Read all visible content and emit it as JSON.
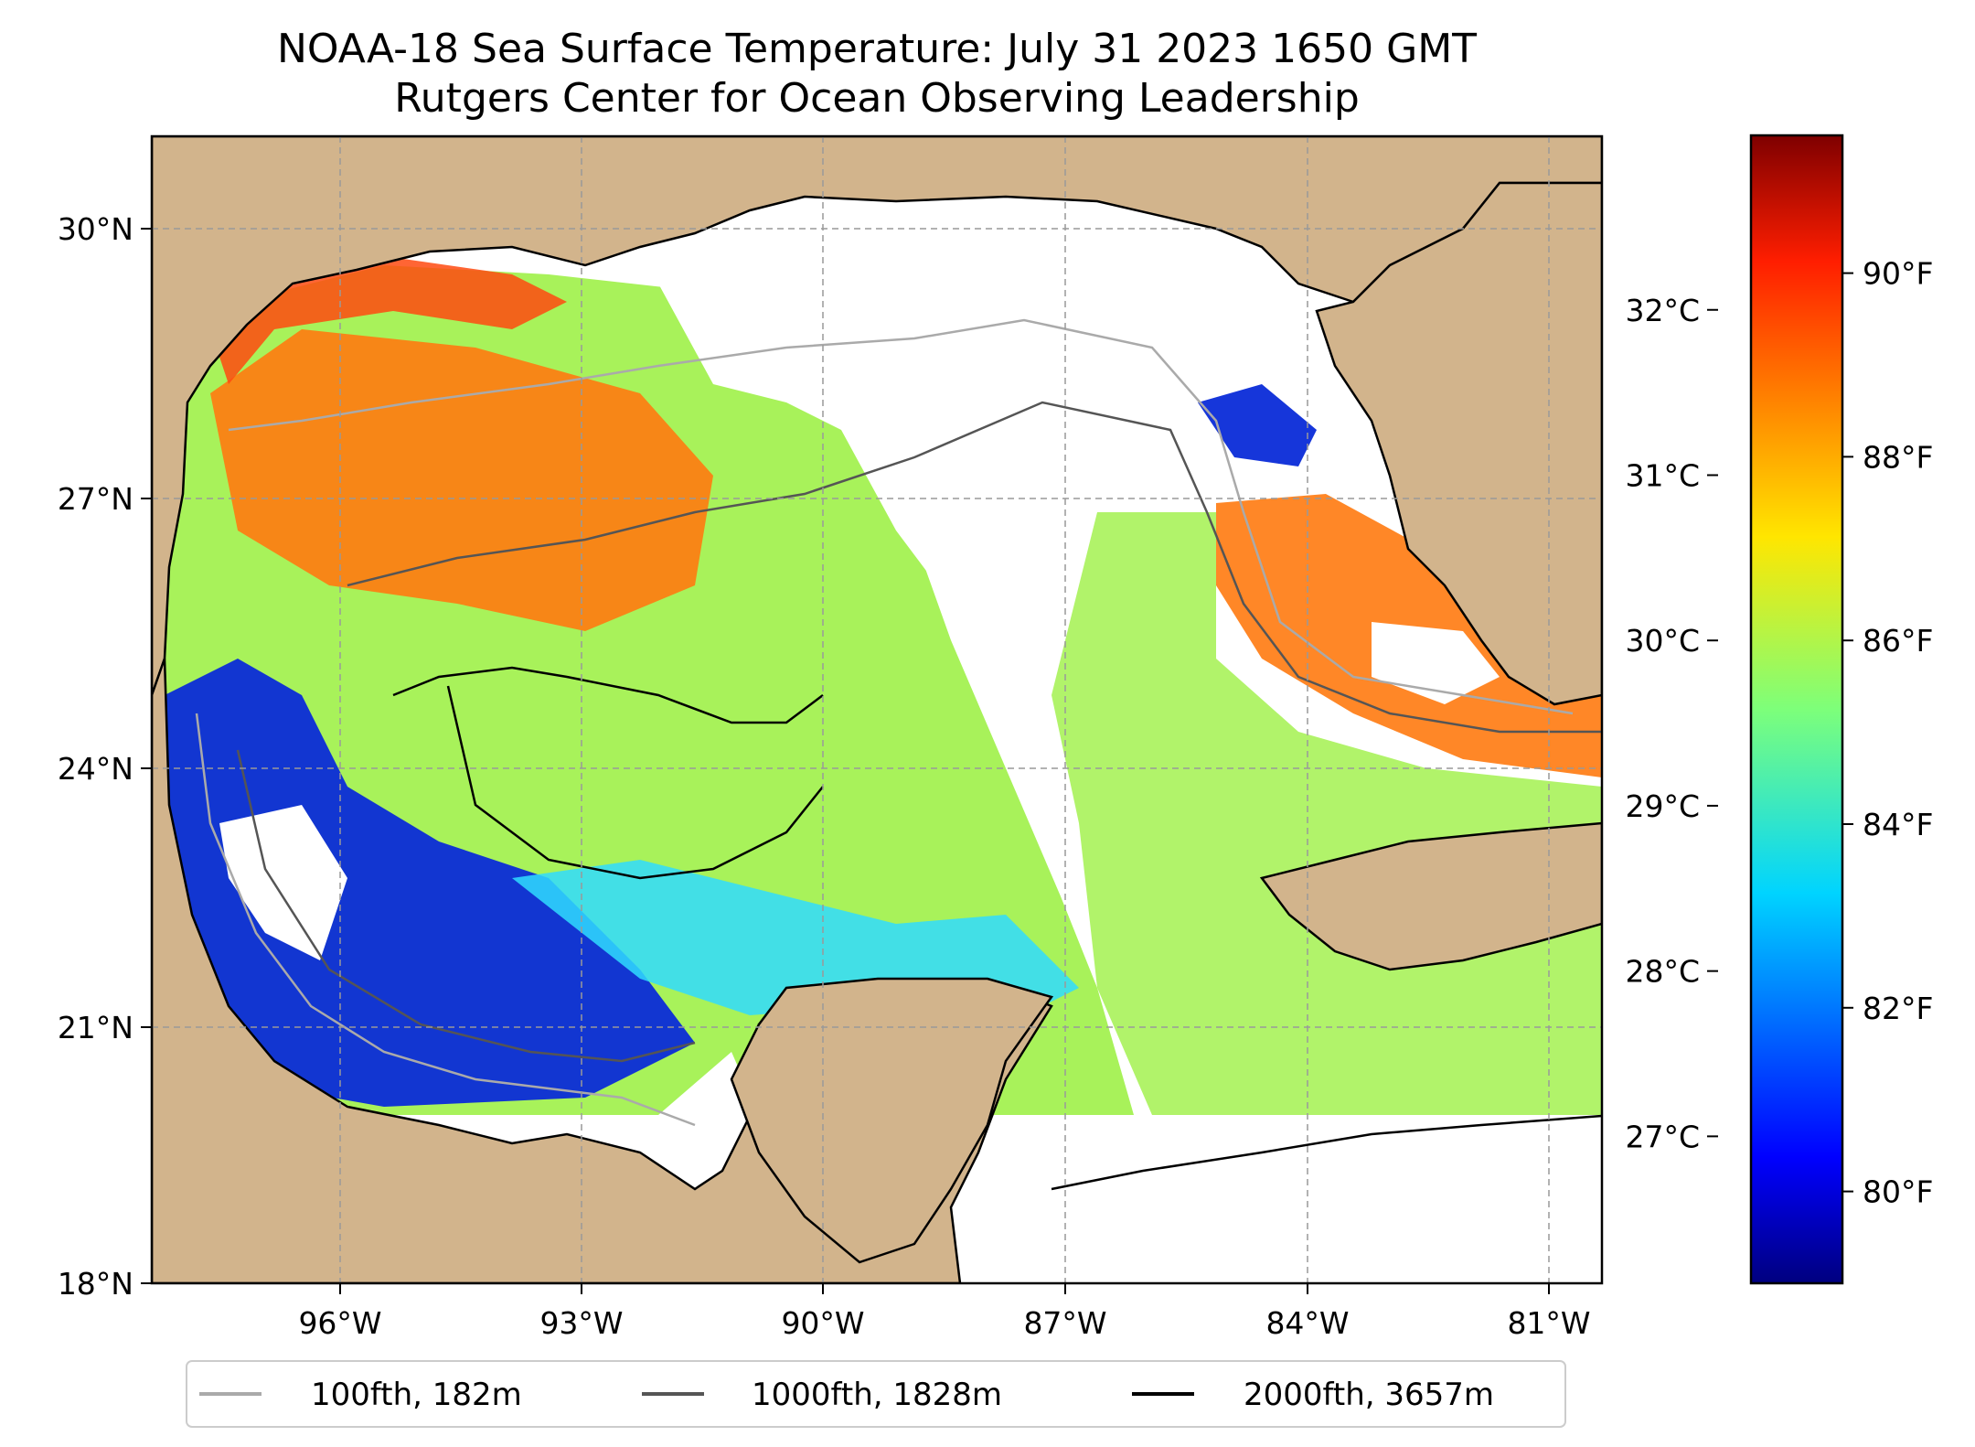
{
  "title": {
    "line1": "NOAA-18 Sea Surface Temperature: July 31 2023 1650 GMT",
    "line2": "Rutgers Center for Ocean Observing Leadership"
  },
  "map": {
    "lon_range": [
      -98.4,
      -80.5
    ],
    "lat_range": [
      18.0,
      31.0
    ],
    "lat_ticks": [
      {
        "value": 30,
        "label": "30°N"
      },
      {
        "value": 27,
        "label": "27°N"
      },
      {
        "value": 24,
        "label": "24°N"
      },
      {
        "value": 21,
        "label": "21°N"
      },
      {
        "value": 18,
        "label": "18°N"
      }
    ],
    "lon_ticks": [
      {
        "value": -96,
        "label": "96°W"
      },
      {
        "value": -93,
        "label": "93°W"
      },
      {
        "value": -90,
        "label": "90°W"
      },
      {
        "value": -87,
        "label": "87°W"
      },
      {
        "value": -84,
        "label": "84°W"
      },
      {
        "value": -81,
        "label": "81°W"
      }
    ],
    "gridlines": "on",
    "land_color": "#d2b48c",
    "colormap": "jet"
  },
  "colorbar": {
    "celsius_ticks": [
      {
        "value": 27,
        "label": "27°C"
      },
      {
        "value": 28,
        "label": "28°C"
      },
      {
        "value": 29,
        "label": "29°C"
      },
      {
        "value": 30,
        "label": "30°C"
      },
      {
        "value": 31,
        "label": "31°C"
      },
      {
        "value": 32,
        "label": "32°C"
      }
    ],
    "fahrenheit_ticks": [
      {
        "value": 80,
        "label": "80°F"
      },
      {
        "value": 82,
        "label": "82°F"
      },
      {
        "value": 84,
        "label": "84°F"
      },
      {
        "value": 86,
        "label": "86°F"
      },
      {
        "value": 88,
        "label": "88°F"
      },
      {
        "value": 90,
        "label": "90°F"
      }
    ],
    "range_f": [
      79,
      91.5
    ]
  },
  "legend": {
    "placement": "bottom-center",
    "items": [
      {
        "label": "100fth, 182m",
        "color": "#aaaaaa"
      },
      {
        "label": "1000fth, 1828m",
        "color": "#555555"
      },
      {
        "label": "2000fth, 3657m",
        "color": "#000000"
      }
    ]
  }
}
